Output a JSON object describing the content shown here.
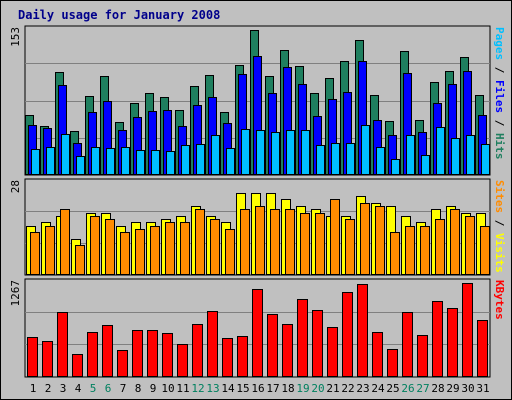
{
  "chart_data": [
    {
      "type": "bar",
      "title": "Daily usage for January 2008",
      "categories": [
        "1",
        "2",
        "3",
        "4",
        "5",
        "6",
        "7",
        "8",
        "9",
        "10",
        "11",
        "12",
        "13",
        "14",
        "15",
        "16",
        "17",
        "18",
        "19",
        "20",
        "21",
        "22",
        "23",
        "24",
        "25",
        "26",
        "27",
        "28",
        "29",
        "30",
        "31"
      ],
      "weekend_days": [
        "5",
        "6",
        "12",
        "13",
        "19",
        "20",
        "26",
        "27"
      ],
      "ymax_label": "153",
      "ylim": [
        0,
        153
      ],
      "grid": true,
      "series": [
        {
          "name": "Hits",
          "color": "#1f7f5f",
          "values": [
            63,
            52,
            109,
            46,
            83,
            104,
            56,
            76,
            87,
            82,
            69,
            94,
            105,
            67,
            116,
            153,
            104,
            132,
            115,
            86,
            102,
            120,
            142,
            84,
            57,
            131,
            58,
            98,
            110,
            125,
            84
          ]
        },
        {
          "name": "Files",
          "color": "#0000ff",
          "values": [
            53,
            50,
            95,
            34,
            67,
            78,
            48,
            61,
            68,
            69,
            52,
            74,
            82,
            55,
            107,
            126,
            86,
            114,
            96,
            62,
            80,
            88,
            120,
            58,
            42,
            108,
            45,
            76,
            96,
            110,
            63
          ]
        },
        {
          "name": "Pages",
          "color": "#00bfff",
          "values": [
            27,
            30,
            43,
            20,
            30,
            29,
            30,
            26,
            26,
            25,
            32,
            33,
            42,
            28,
            49,
            47,
            45,
            47,
            47,
            32,
            34,
            34,
            53,
            30,
            17,
            42,
            21,
            51,
            39,
            42,
            33
          ]
        }
      ],
      "legend_text": [
        {
          "text": "Pages",
          "color": "#00bfff"
        },
        {
          "text": " / ",
          "color": "#000000"
        },
        {
          "text": "Files",
          "color": "#0000ff"
        },
        {
          "text": " / ",
          "color": "#000000"
        },
        {
          "text": "Hits",
          "color": "#1f7f5f"
        }
      ]
    },
    {
      "type": "bar",
      "ymax_label": "28",
      "ylim": [
        0,
        28
      ],
      "grid": true,
      "series": [
        {
          "name": "Visits",
          "color": "#ffff00",
          "values": [
            15,
            16,
            18,
            11,
            19,
            19,
            15,
            16,
            16,
            17,
            18,
            21,
            18,
            16,
            25,
            25,
            25,
            23,
            21,
            20,
            18,
            18,
            24,
            22,
            21,
            18,
            16,
            20,
            21,
            19,
            19
          ]
        },
        {
          "name": "Sites",
          "color": "#ff8c00",
          "values": [
            13,
            15,
            20,
            9,
            18,
            17,
            13,
            14,
            15,
            16,
            16,
            20,
            17,
            14,
            20,
            21,
            20,
            20,
            19,
            19,
            23,
            17,
            22,
            21,
            13,
            15,
            15,
            17,
            20,
            18,
            15
          ]
        }
      ],
      "legend_text": [
        {
          "text": "Sites",
          "color": "#ff8c00"
        },
        {
          "text": " / ",
          "color": "#000000"
        },
        {
          "text": "Visits",
          "color": "#ffff00"
        }
      ]
    },
    {
      "type": "bar",
      "ymax_label": "1267",
      "ylim": [
        0,
        1267
      ],
      "grid": true,
      "series": [
        {
          "name": "KBytes",
          "color": "#ff0000",
          "values": [
            537,
            482,
            881,
            314,
            604,
            696,
            361,
            637,
            637,
            594,
            442,
            718,
            889,
            522,
            558,
            1186,
            847,
            718,
            1051,
            903,
            680,
            1146,
            1248,
            603,
            374,
            882,
            570,
            1030,
            927,
            1262,
            774
          ]
        }
      ],
      "legend_text": [
        {
          "text": "KBytes",
          "color": "#ff0000"
        }
      ]
    }
  ]
}
